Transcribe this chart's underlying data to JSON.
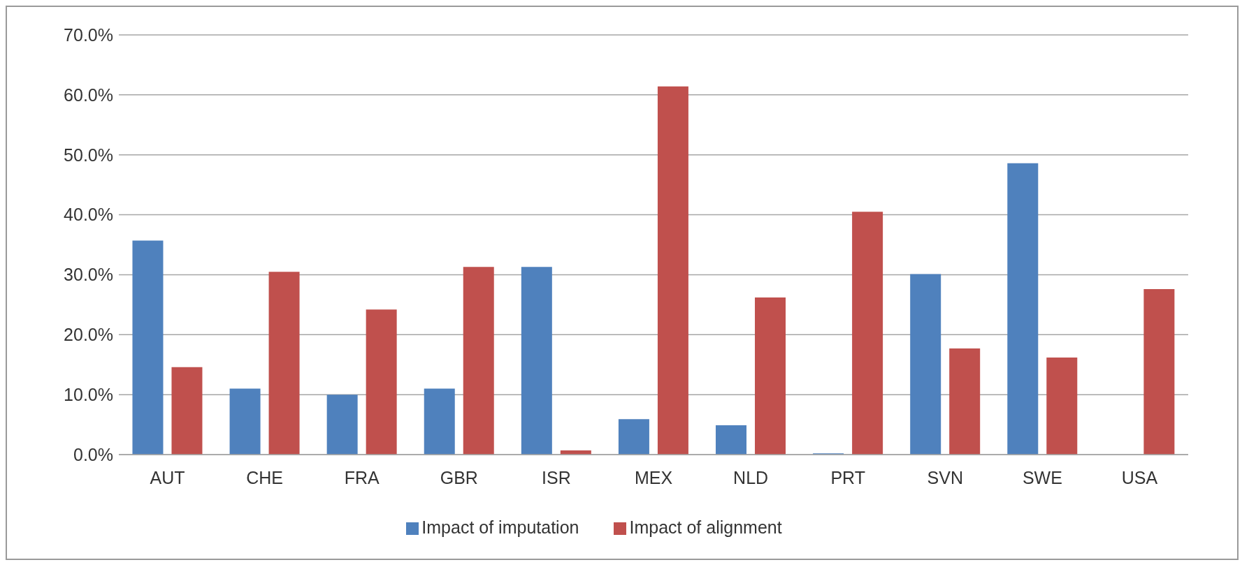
{
  "chart_data": {
    "type": "bar",
    "categories": [
      "AUT",
      "CHE",
      "FRA",
      "GBR",
      "ISR",
      "MEX",
      "NLD",
      "PRT",
      "SVN",
      "SWE",
      "USA"
    ],
    "series": [
      {
        "name": "Impact of imputation",
        "color": "#4f81bd",
        "values": [
          35.7,
          11.0,
          10.0,
          11.0,
          31.3,
          5.9,
          4.9,
          0.2,
          30.1,
          48.6,
          0
        ]
      },
      {
        "name": "Impact of alignment",
        "color": "#c0504d",
        "values": [
          14.6,
          30.5,
          24.2,
          31.3,
          0.7,
          61.4,
          26.2,
          40.5,
          17.7,
          16.2,
          27.6
        ]
      }
    ],
    "ylim": [
      0,
      70
    ],
    "yticks": [
      {
        "value": 0,
        "label": "0.0%"
      },
      {
        "value": 10,
        "label": "10.0%"
      },
      {
        "value": 20,
        "label": "20.0%"
      },
      {
        "value": 30,
        "label": "30.0%"
      },
      {
        "value": 40,
        "label": "40.0%"
      },
      {
        "value": 50,
        "label": "50.0%"
      },
      {
        "value": 60,
        "label": "60.0%"
      },
      {
        "value": 70,
        "label": "70.0%"
      }
    ],
    "grid": "y",
    "legend": "bottom"
  }
}
